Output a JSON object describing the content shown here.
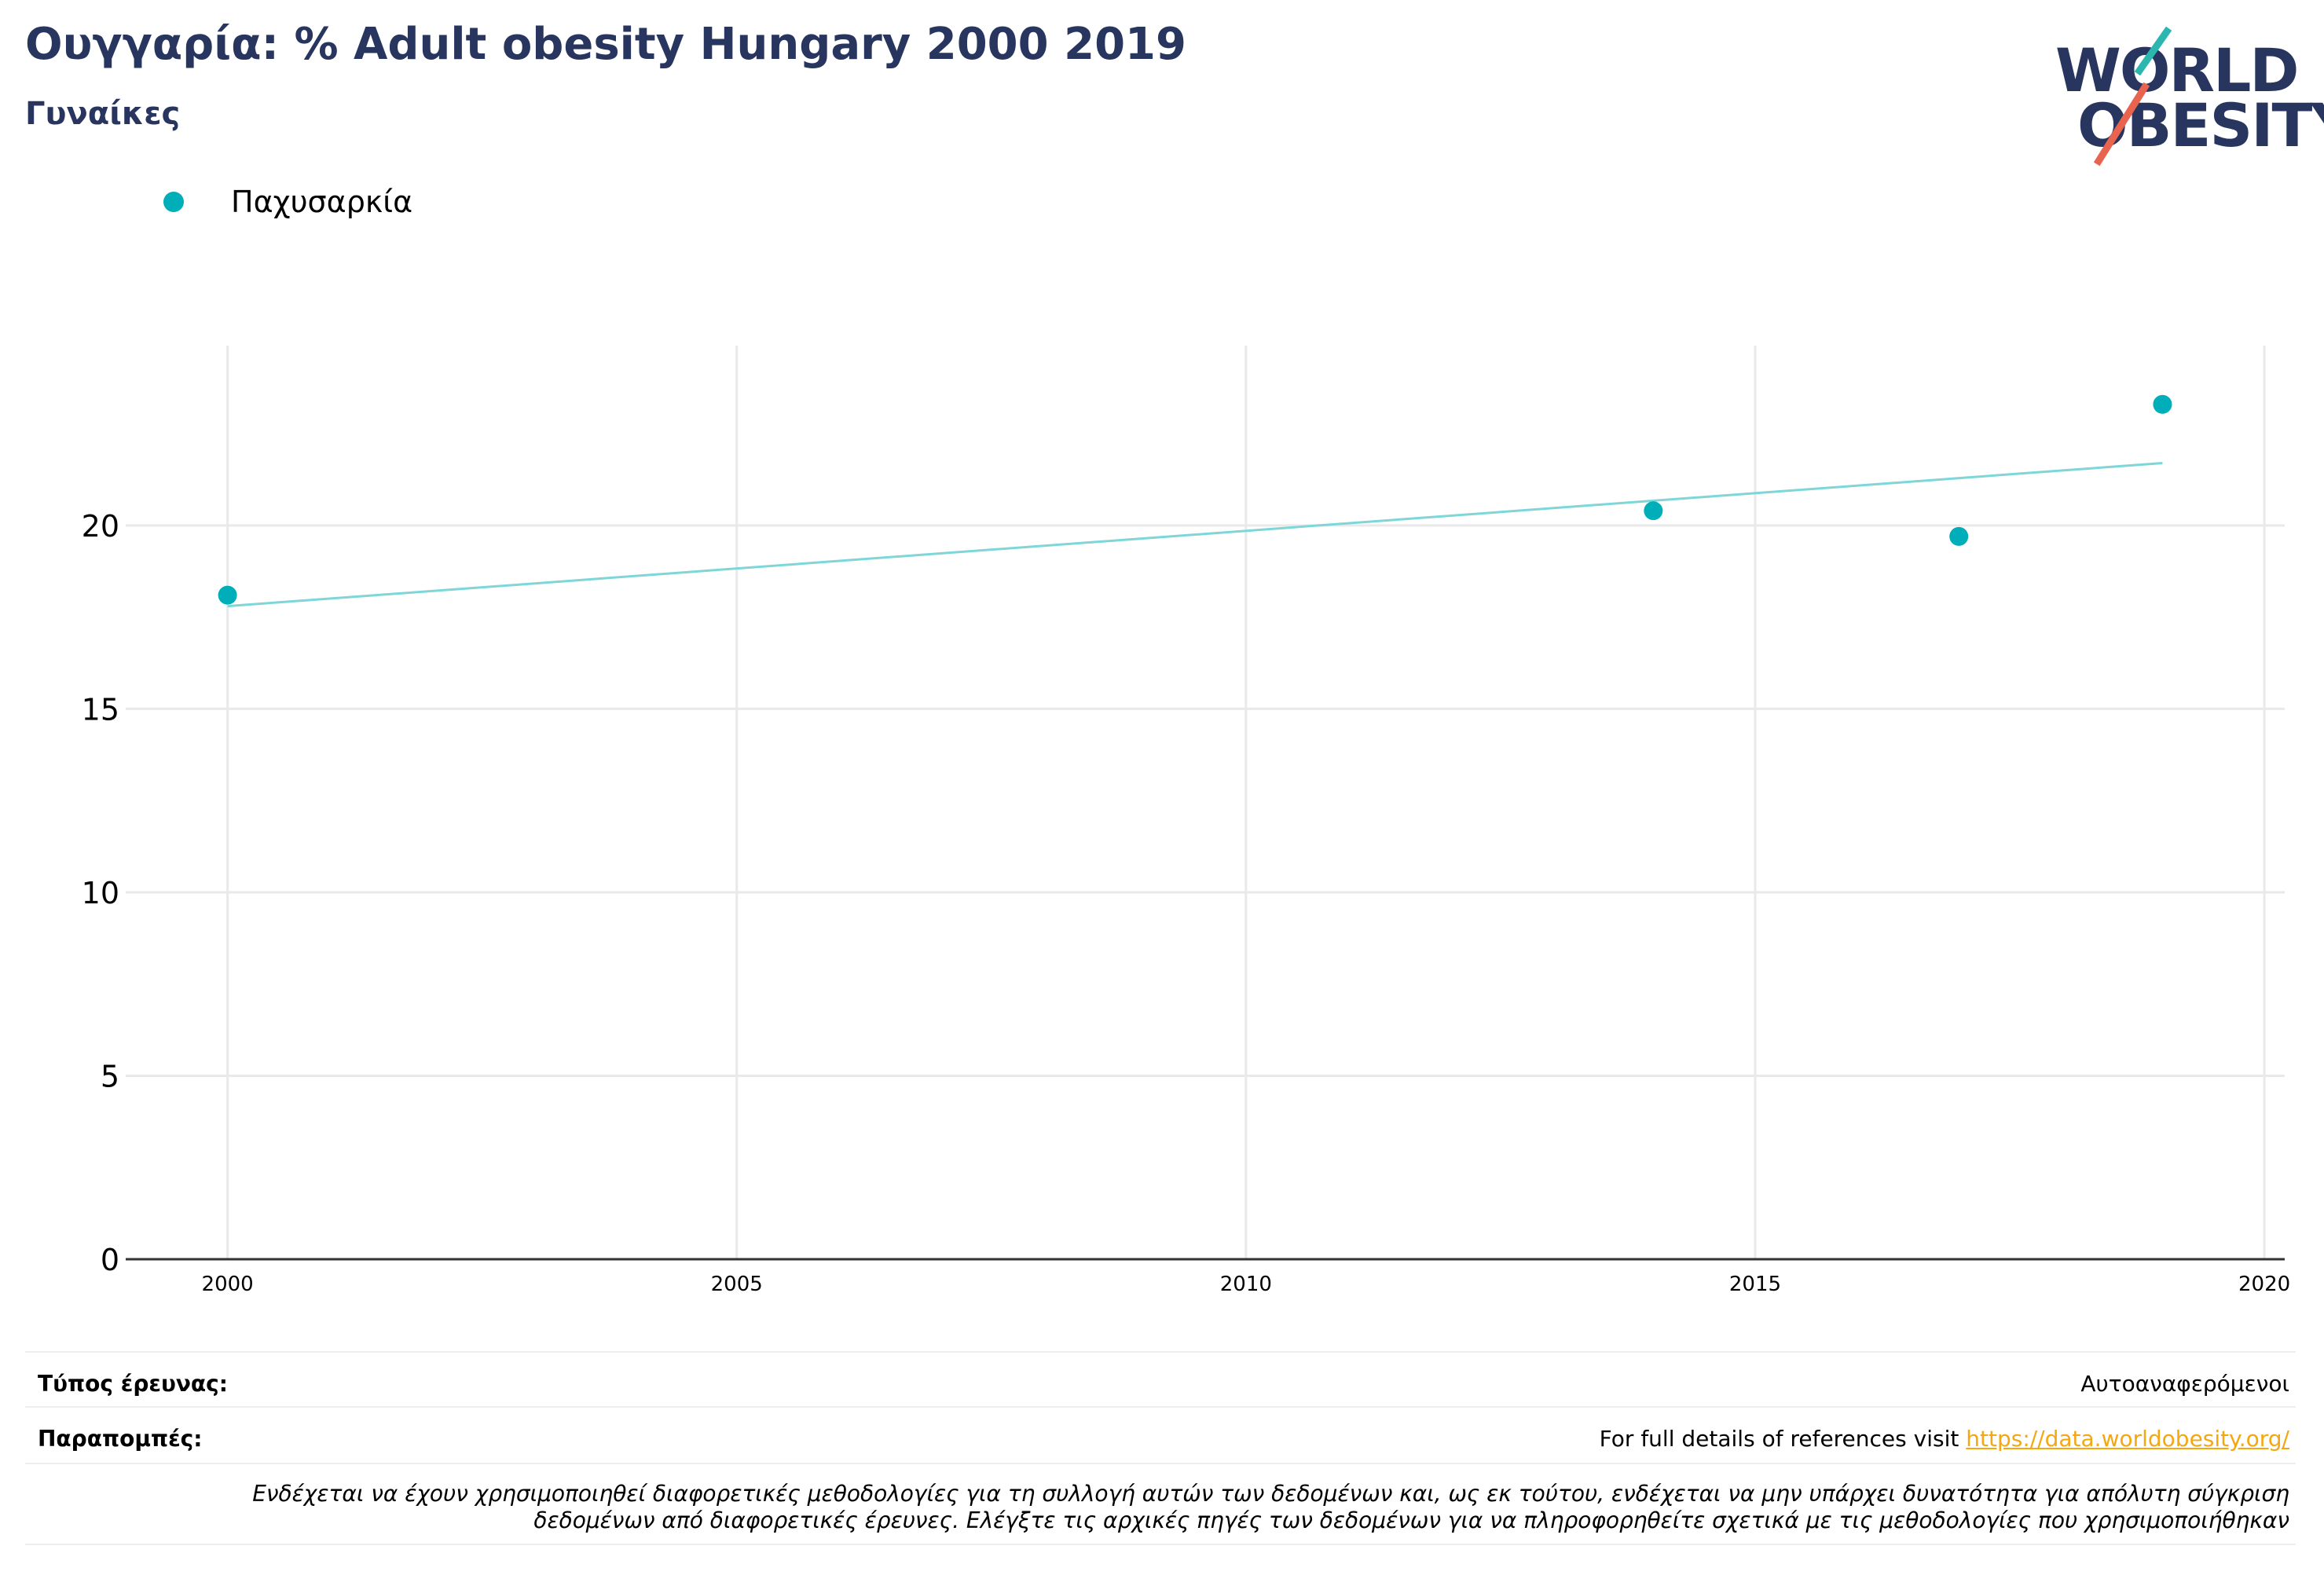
{
  "header": {
    "title": "Ουγγαρία: % Adult obesity Hungary 2000 2019",
    "subtitle": "Γυναίκες"
  },
  "logo": {
    "line1": "WORLD",
    "line2": "OBESITY"
  },
  "colors": {
    "series": "#00aeb9",
    "trend": "#7fd6d8",
    "title": "#27355f",
    "link": "#f3a712"
  },
  "chart_data": {
    "type": "scatter",
    "series": [
      {
        "name": "Παχυσαρκία",
        "x": [
          2000,
          2014,
          2017,
          2019
        ],
        "y": [
          18.1,
          20.4,
          19.7,
          23.3
        ]
      }
    ],
    "trendline": {
      "x": [
        2000,
        2019
      ],
      "y": [
        17.8,
        21.7
      ]
    },
    "xlim": [
      1999,
      2020.2
    ],
    "ylim": [
      0,
      24.9
    ],
    "x_ticks": [
      2000,
      2005,
      2010,
      2015,
      2020
    ],
    "y_ticks": [
      0,
      5,
      10,
      15,
      20
    ],
    "grid": true,
    "legend": "top-left"
  },
  "footer": {
    "survey_label": "Τύπος έρευνας:",
    "survey_value": "Αυτοαναφερόμενοι",
    "refs_label": "Παραπομπές:",
    "refs_text": "For full details of references visit ",
    "refs_link": "https://data.worldobesity.org/",
    "note_line1": "Ενδέχεται να έχουν χρησιμοποιηθεί διαφορετικές μεθοδολογίες για τη συλλογή αυτών των δεδομένων και, ως εκ τούτου, ενδέχεται να μην υπάρχει δυνατότητα για απόλυτη σύγκριση",
    "note_line2": "δεδομένων από διαφορετικές έρευνες. Ελέγξτε τις αρχικές πηγές των δεδομένων για να πληροφορηθείτε σχετικά με τις μεθοδολογίες που χρησιμοποιήθηκαν"
  }
}
